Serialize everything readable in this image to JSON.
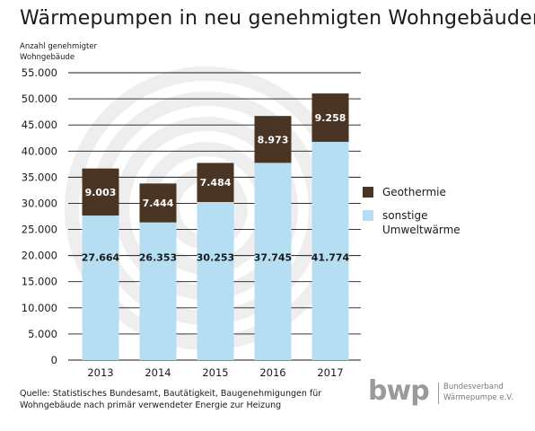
{
  "chart_data": {
    "type": "bar",
    "stacked": true,
    "title": "Wärmepumpen in neu genehmigten Wohngebäuden",
    "ylabel": "Anzahl genehmigter\nWohngebäude",
    "categories": [
      "2013",
      "2014",
      "2015",
      "2016",
      "2017"
    ],
    "series": [
      {
        "name": "sonstige Umweltwärme",
        "values": [
          27664,
          26353,
          30253,
          37745,
          41774
        ],
        "labels": [
          "27.664",
          "26.353",
          "30.253",
          "37.745",
          "41.774"
        ],
        "color": "#b5def2"
      },
      {
        "name": "Geothermie",
        "values": [
          9003,
          7444,
          7484,
          8973,
          9258
        ],
        "labels": [
          "9.003",
          "7.444",
          "7.484",
          "8.973",
          "9.258"
        ],
        "color": "#4a3424"
      }
    ],
    "ylim": [
      0,
      55000
    ],
    "yticks": [
      "0",
      "5.000",
      "10.000",
      "15.000",
      "20.000",
      "25.000",
      "30.000",
      "35.000",
      "40.000",
      "45.000",
      "50.000",
      "55.000"
    ],
    "grid": true,
    "legend_position": "right"
  },
  "legend": [
    {
      "label": "Geothermie",
      "color": "#4a3424"
    },
    {
      "label": "sonstige\nUmweltwärme",
      "color": "#b5def2"
    }
  ],
  "source_note": "Quelle: Statistisches Bundesamt, Bautätigkeit, Baugenehmigungen für Wohngebäude nach primär verwendeter Energie zur Heizung",
  "logo": {
    "mark": "bwp",
    "text": "Bundesverband\nWärmepumpe e.V."
  }
}
